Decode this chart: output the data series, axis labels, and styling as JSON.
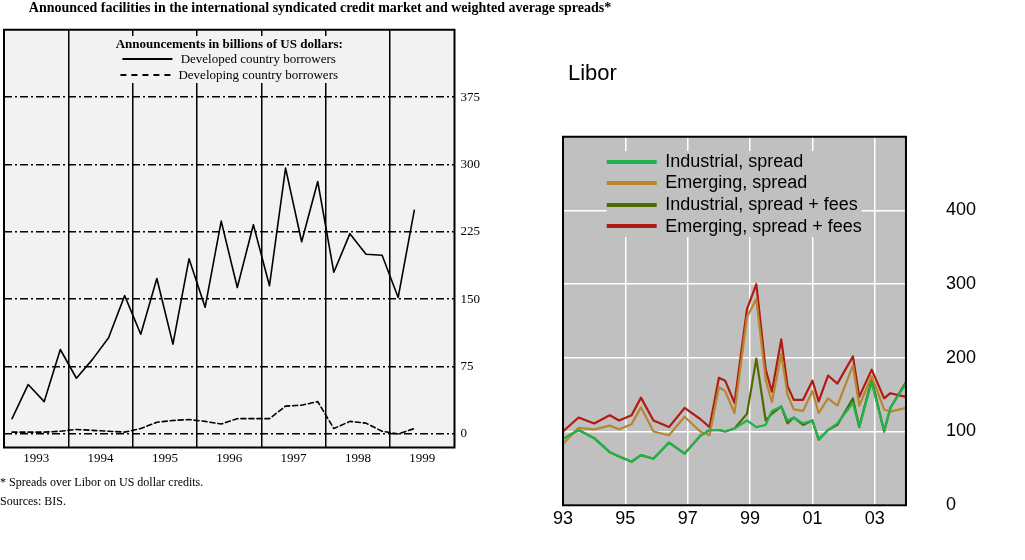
{
  "chart_data": [
    {
      "type": "line",
      "title": "Announced facilities in the international syndicated credit market and weighted average spreads*",
      "legend_title": "Announcements in billions of US dollars:",
      "legend": "top",
      "grid": true,
      "marker": "none",
      "xlim": [
        1993,
        2000
      ],
      "xticks": [
        {
          "value": 1993.5,
          "label": "1993"
        },
        {
          "value": 1994,
          "label": null
        },
        {
          "value": 1994.5,
          "label": "1994"
        },
        {
          "value": 1995,
          "label": null
        },
        {
          "value": 1995.5,
          "label": "1995"
        },
        {
          "value": 1996,
          "label": null
        },
        {
          "value": 1996.5,
          "label": "1996"
        },
        {
          "value": 1997,
          "label": null
        },
        {
          "value": 1997.5,
          "label": "1997"
        },
        {
          "value": 1998,
          "label": null
        },
        {
          "value": 1998.5,
          "label": "1998"
        },
        {
          "value": 1999,
          "label": null
        },
        {
          "value": 1999.5,
          "label": "1999"
        }
      ],
      "ylim": [
        -15,
        450
      ],
      "yticks": [
        0,
        75,
        150,
        225,
        300,
        375
      ],
      "x": [
        1993.125,
        1993.375,
        1993.625,
        1993.875,
        1994.125,
        1994.375,
        1994.625,
        1994.875,
        1995.125,
        1995.375,
        1995.625,
        1995.875,
        1996.125,
        1996.375,
        1996.625,
        1996.875,
        1997.125,
        1997.375,
        1997.625,
        1997.875,
        1998.125,
        1998.375,
        1998.625,
        1998.875,
        1999.125,
        1999.375
      ],
      "series": [
        {
          "name": "Developed country borrowers",
          "color": "#000000",
          "line_style": "solid",
          "values": [
            17,
            55,
            36,
            94,
            62,
            83,
            107,
            154,
            111,
            173,
            100,
            195,
            141,
            237,
            163,
            233,
            165,
            296,
            214,
            281,
            180,
            223,
            200,
            199,
            152,
            249
          ]
        },
        {
          "name": "Developing country borrowers",
          "color": "#000000",
          "line_style": "dashed",
          "values": [
            2,
            2,
            2,
            3,
            5,
            4,
            3,
            2,
            6,
            13,
            15,
            16,
            14,
            11,
            17,
            17,
            17,
            31,
            32,
            36,
            6,
            14,
            12,
            3,
            0,
            6
          ]
        }
      ],
      "annotations": [
        "* Spreads over Libor on US dollar credits.",
        "Sources: BIS."
      ]
    },
    {
      "type": "line",
      "ylabel": "Libor",
      "legend": "top",
      "grid": true,
      "marker": "none",
      "xlim": [
        1993,
        2004
      ],
      "xticks": [
        {
          "value": 1993,
          "label": "93"
        },
        {
          "value": 1995,
          "label": "95"
        },
        {
          "value": 1997,
          "label": "97"
        },
        {
          "value": 1999,
          "label": "99"
        },
        {
          "value": 2001,
          "label": "01"
        },
        {
          "value": 2003,
          "label": "03"
        }
      ],
      "ylim": [
        0,
        500
      ],
      "yticks": [
        0,
        100,
        200,
        300,
        400
      ],
      "x": [
        1993.0,
        1993.5,
        1994.0,
        1994.5,
        1994.8,
        1995.2,
        1995.5,
        1995.9,
        1996.4,
        1996.9,
        1997.4,
        1997.7,
        1998.0,
        1998.2,
        1998.5,
        1998.9,
        1999.2,
        1999.5,
        1999.7,
        2000.0,
        2000.2,
        2000.4,
        2000.7,
        2001.0,
        2001.2,
        2001.5,
        2001.8,
        2002.3,
        2002.5,
        2002.9,
        2003.3,
        2003.5,
        2004.0
      ],
      "series": [
        {
          "name": "Industrial, spread",
          "color": "#22b14c",
          "values": [
            90,
            102,
            91,
            72,
            66,
            59,
            68,
            63,
            85,
            70,
            94,
            102,
            102,
            100,
            104,
            115,
            106,
            109,
            128,
            134,
            115,
            119,
            111,
            115,
            89,
            102,
            111,
            139,
            106,
            167,
            100,
            132,
            165
          ]
        },
        {
          "name": "Emerging, spread",
          "color": "#b8862f",
          "values": [
            83,
            105,
            103,
            108,
            103,
            110,
            133,
            100,
            95,
            120,
            100,
            95,
            160,
            155,
            125,
            255,
            280,
            170,
            140,
            205,
            150,
            130,
            128,
            155,
            125,
            145,
            135,
            190,
            135,
            175,
            130,
            127,
            132
          ]
        },
        {
          "name": "Industrial, spread + fees",
          "color": "#4f6b00",
          "values": [
            90,
            102,
            91,
            72,
            66,
            59,
            68,
            63,
            85,
            70,
            94,
            102,
            102,
            100,
            104,
            124,
            199,
            115,
            124,
            134,
            111,
            119,
            109,
            115,
            89,
            102,
            109,
            145,
            106,
            171,
            100,
            132,
            167
          ]
        },
        {
          "name": "Emerging, spread + fees",
          "color": "#b01c14",
          "values": [
            100,
            119,
            111,
            122,
            115,
            122,
            146,
            115,
            106,
            132,
            117,
            106,
            173,
            169,
            139,
            266,
            300,
            184,
            154,
            225,
            162,
            143,
            143,
            169,
            141,
            176,
            165,
            202,
            147,
            184,
            145,
            152,
            147
          ]
        }
      ]
    }
  ]
}
